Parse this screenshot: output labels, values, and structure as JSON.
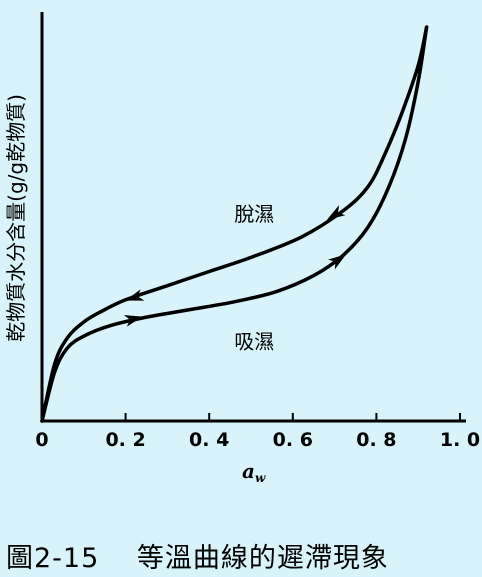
{
  "caption": "圖2-15　 等溫曲線的遲滯現象",
  "chart_data": {
    "type": "line",
    "title": "",
    "xlabel": "a",
    "xlabel_subscript": "w",
    "ylabel": "乾物質水分含量(g/g乾物質)",
    "xlim": [
      0,
      1.0
    ],
    "x_ticks": [
      0,
      0.2,
      0.4,
      0.6,
      0.8,
      1.0
    ],
    "x_tick_labels": [
      "0",
      "0. 2",
      "0. 4",
      "0. 6",
      "0. 8",
      "1. 0"
    ],
    "y_ticks_shown": false,
    "series": [
      {
        "name": "脫濕",
        "direction": "decreasing",
        "points": [
          [
            0.92,
            0.975
          ],
          [
            0.9,
            0.88
          ],
          [
            0.86,
            0.76
          ],
          [
            0.82,
            0.66
          ],
          [
            0.78,
            0.58
          ],
          [
            0.72,
            0.52
          ],
          [
            0.62,
            0.455
          ],
          [
            0.5,
            0.405
          ],
          [
            0.4,
            0.37
          ],
          [
            0.3,
            0.335
          ],
          [
            0.2,
            0.3
          ],
          [
            0.14,
            0.27
          ],
          [
            0.1,
            0.245
          ],
          [
            0.06,
            0.205
          ],
          [
            0.03,
            0.14
          ],
          [
            0.0,
            0.0
          ]
        ]
      },
      {
        "name": "吸濕",
        "direction": "increasing",
        "points": [
          [
            0.0,
            0.0
          ],
          [
            0.03,
            0.12
          ],
          [
            0.06,
            0.18
          ],
          [
            0.1,
            0.21
          ],
          [
            0.16,
            0.235
          ],
          [
            0.24,
            0.255
          ],
          [
            0.35,
            0.275
          ],
          [
            0.46,
            0.295
          ],
          [
            0.56,
            0.32
          ],
          [
            0.65,
            0.36
          ],
          [
            0.72,
            0.41
          ],
          [
            0.78,
            0.48
          ],
          [
            0.83,
            0.58
          ],
          [
            0.87,
            0.7
          ],
          [
            0.9,
            0.84
          ],
          [
            0.92,
            0.975
          ]
        ]
      }
    ],
    "arrows": [
      {
        "series": "脫濕",
        "at": [
          0.7,
          0.51
        ]
      },
      {
        "series": "脫濕",
        "at": [
          0.22,
          0.305
        ]
      },
      {
        "series": "吸濕",
        "at": [
          0.22,
          0.253
        ]
      },
      {
        "series": "吸濕",
        "at": [
          0.71,
          0.4
        ]
      }
    ],
    "series_labels": [
      {
        "text": "脫濕",
        "at": [
          0.46,
          0.495
        ]
      },
      {
        "text": "吸濕",
        "at": [
          0.46,
          0.18
        ]
      }
    ],
    "grid": false,
    "legend": "none"
  }
}
